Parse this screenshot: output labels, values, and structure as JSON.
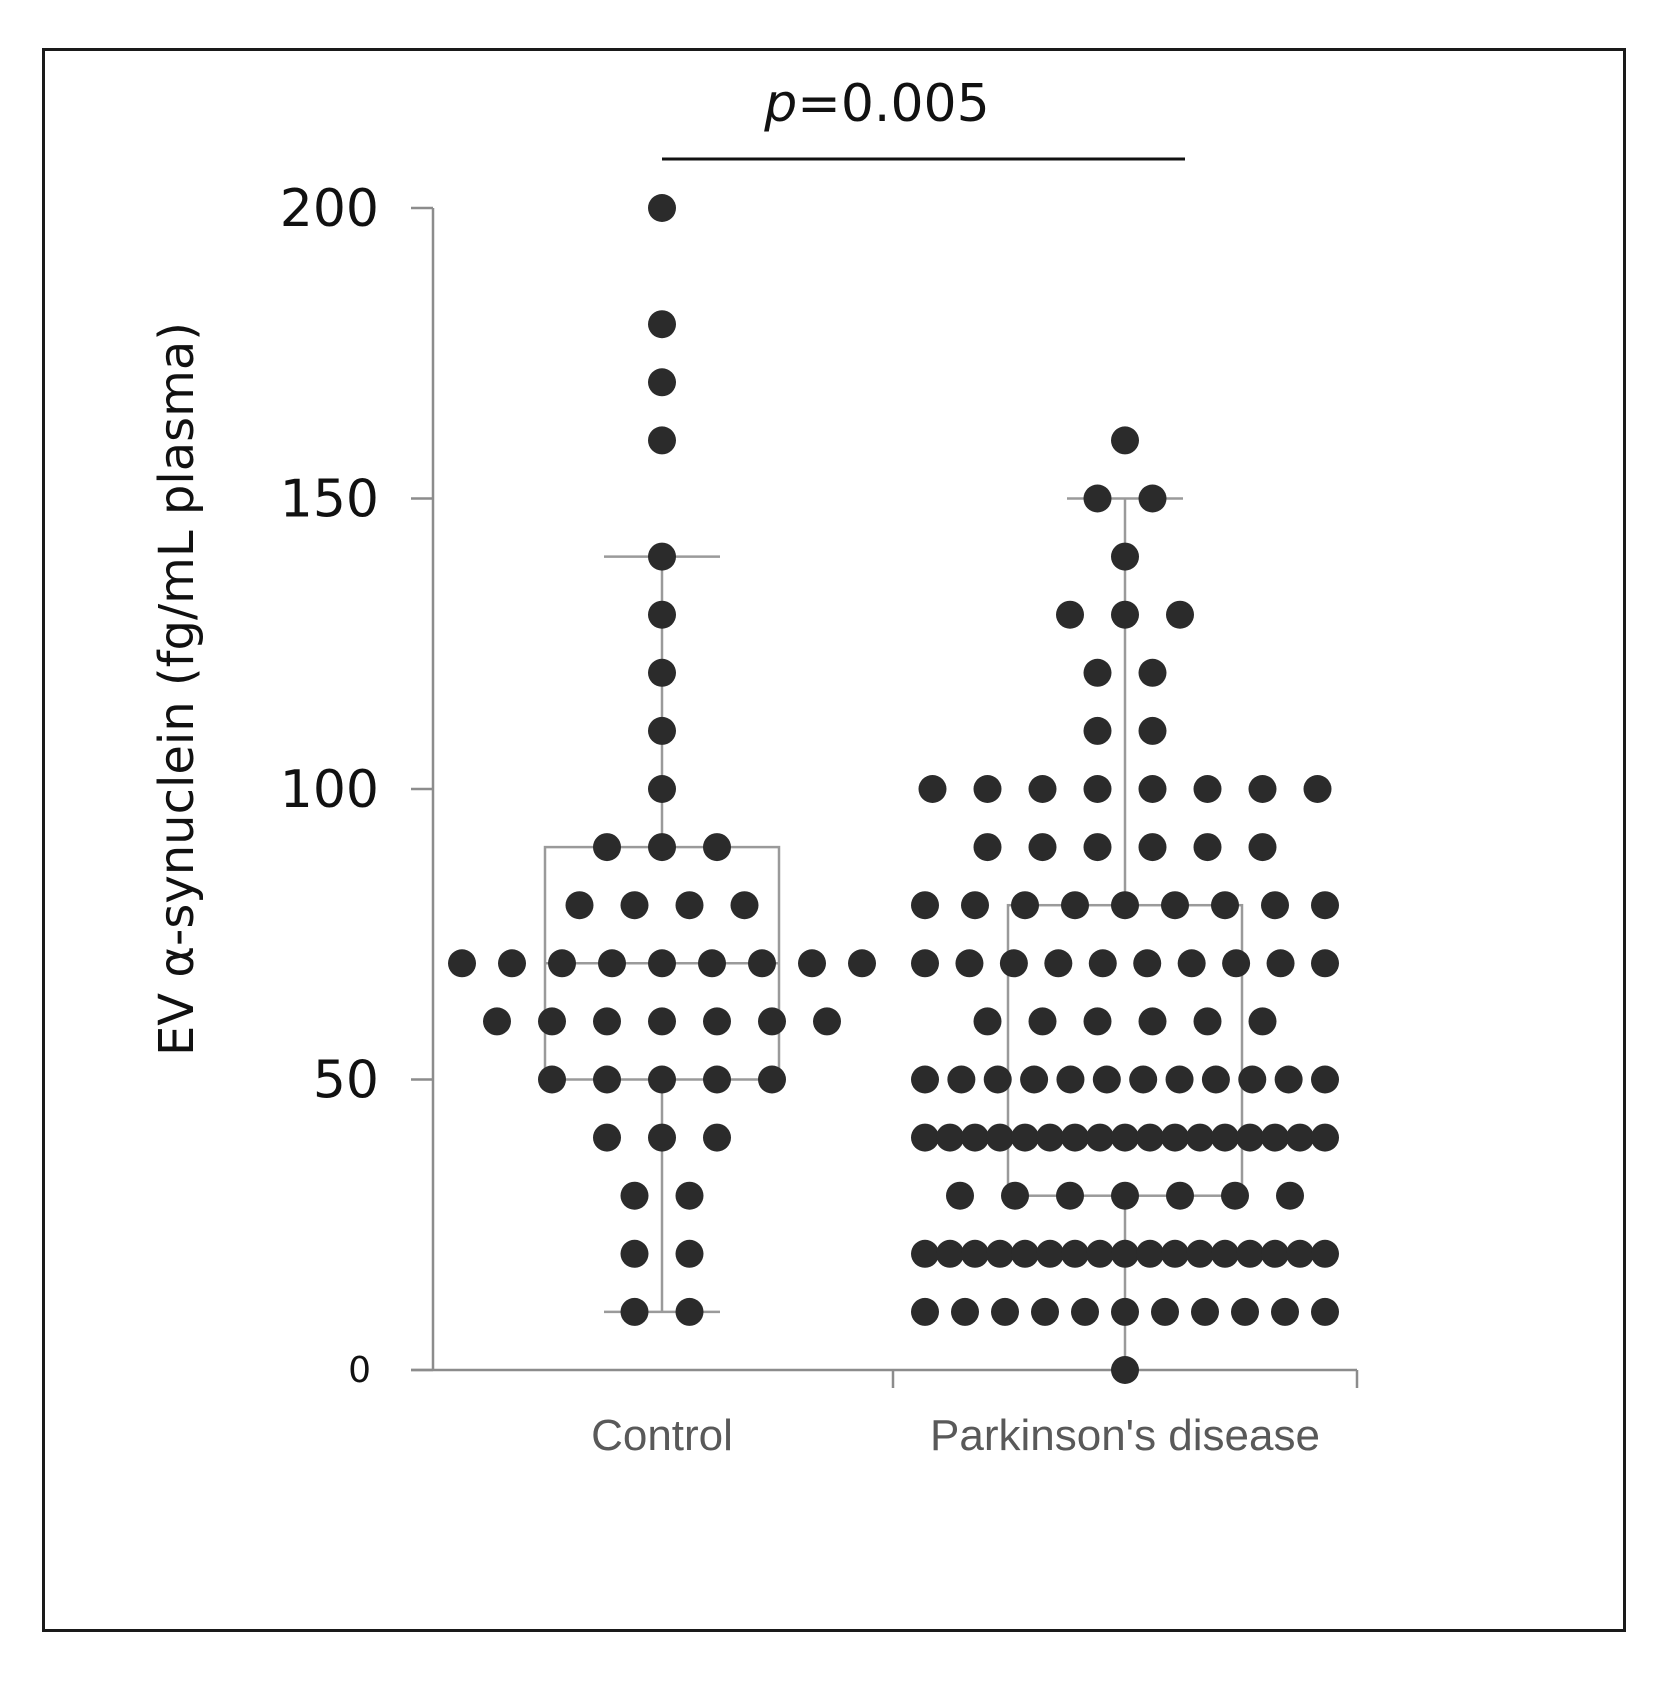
{
  "chart_data": {
    "type": "scatter",
    "subtype": "dot-plot with box-and-whisker",
    "ylabel": "EV α-synuclein (fg/mL plasma)",
    "ylim": [
      0,
      200
    ],
    "yticks": [
      0,
      50,
      100,
      150,
      200
    ],
    "ytick_labels": [
      "0",
      "50",
      "100",
      "150",
      "200"
    ],
    "categories": [
      "Control",
      "Parkinson's disease"
    ],
    "annotation": {
      "p_italic": "p",
      "p_value": "=0.005"
    },
    "colors": {
      "dot": "#2b2b2b",
      "box": "#9a9a9a",
      "axis": "#8c8c8c",
      "text": "#111111",
      "category_text": "#595959"
    },
    "series": [
      {
        "category": "Control",
        "box": {
          "whisker_low": 10,
          "q1": 50,
          "median": 70,
          "q3": 90,
          "whisker_high": 140
        },
        "points": [
          {
            "y": 200,
            "count": 1
          },
          {
            "y": 180,
            "count": 1
          },
          {
            "y": 170,
            "count": 1
          },
          {
            "y": 160,
            "count": 1
          },
          {
            "y": 140,
            "count": 1
          },
          {
            "y": 130,
            "count": 1
          },
          {
            "y": 120,
            "count": 1
          },
          {
            "y": 110,
            "count": 1
          },
          {
            "y": 100,
            "count": 1
          },
          {
            "y": 90,
            "count": 3
          },
          {
            "y": 80,
            "count": 4
          },
          {
            "y": 70,
            "count": 9
          },
          {
            "y": 60,
            "count": 7
          },
          {
            "y": 50,
            "count": 5
          },
          {
            "y": 40,
            "count": 3
          },
          {
            "y": 30,
            "count": 2
          },
          {
            "y": 20,
            "count": 2
          },
          {
            "y": 10,
            "count": 2
          }
        ]
      },
      {
        "category": "Parkinson's disease",
        "box": {
          "whisker_low": 0,
          "q1": 30,
          "median": 40,
          "q3": 80,
          "whisker_high": 150
        },
        "points": [
          {
            "y": 160,
            "count": 1
          },
          {
            "y": 150,
            "count": 2
          },
          {
            "y": 140,
            "count": 1
          },
          {
            "y": 130,
            "count": 3
          },
          {
            "y": 120,
            "count": 2
          },
          {
            "y": 110,
            "count": 2
          },
          {
            "y": 100,
            "count": 8
          },
          {
            "y": 90,
            "count": 6
          },
          {
            "y": 80,
            "count": 9
          },
          {
            "y": 70,
            "count": 10
          },
          {
            "y": 60,
            "count": 6
          },
          {
            "y": 50,
            "count": 12
          },
          {
            "y": 40,
            "count": 17
          },
          {
            "y": 30,
            "count": 7
          },
          {
            "y": 20,
            "count": 17
          },
          {
            "y": 10,
            "count": 11
          },
          {
            "y": 0,
            "count": 1
          }
        ]
      }
    ]
  }
}
